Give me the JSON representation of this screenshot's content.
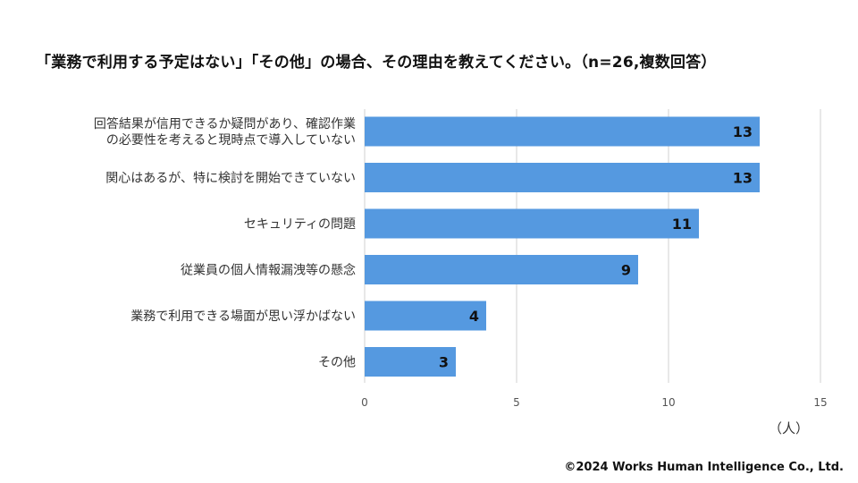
{
  "chart_data": {
    "type": "bar",
    "orientation": "horizontal",
    "title": "「業務で利用する予定はない」「その他」の場合、その理由を教えてください。（n=26,複数回答）",
    "categories": [
      [
        "回答結果が信用できるか疑問があり、確認作業",
        "の必要性を考えると現時点で導入していない"
      ],
      [
        "関心はあるが、特に検討を開始できていない"
      ],
      [
        "セキュリティの問題"
      ],
      [
        "従業員の個人情報漏洩等の懸念"
      ],
      [
        "業務で利用できる場面が思い浮かばない"
      ],
      [
        "その他"
      ]
    ],
    "values": [
      13,
      13,
      11,
      9,
      4,
      3
    ],
    "xlim": [
      0,
      15
    ],
    "xticks": [
      0,
      5,
      10,
      15
    ],
    "unit": "（人）",
    "grid": true,
    "bar_color": "#5599e0",
    "grid_color": "#d0d0d0"
  },
  "footer": {
    "copyright": "©2024 Works Human Intelligence Co., Ltd."
  }
}
